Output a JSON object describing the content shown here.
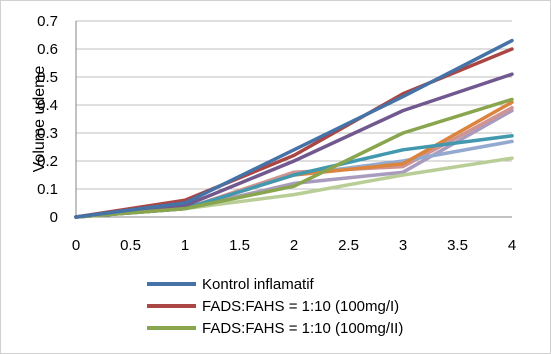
{
  "chart_data": {
    "type": "line",
    "title": "",
    "xlabel": "",
    "ylabel": "Volume udeme",
    "x": [
      0,
      1,
      2,
      3,
      4
    ],
    "xlim": [
      0,
      4
    ],
    "ylim": [
      0,
      0.7
    ],
    "xticks": [
      "0",
      "0.5",
      "1",
      "1.5",
      "2",
      "2.5",
      "3",
      "3.5",
      "4"
    ],
    "yticks": [
      "0",
      "0.1",
      "0.2",
      "0.3",
      "0.4",
      "0.5",
      "0.6",
      "0.7"
    ],
    "grid": "horizontal",
    "legend_position": "bottom",
    "series": [
      {
        "name": "Kontrol inflamatif",
        "color": "#4572A7",
        "values": [
          0,
          0.05,
          0.24,
          0.43,
          0.63
        ]
      },
      {
        "name": "FADS:FAHS = 1:10 (100mg/I)",
        "color": "#AA4643",
        "values": [
          0,
          0.06,
          0.22,
          0.44,
          0.6
        ]
      },
      {
        "name": "FADS:FAHS = 1:10 (100mg/II)",
        "color": "#89A54E",
        "values": [
          0,
          0.03,
          0.11,
          0.3,
          0.42
        ]
      },
      {
        "color": "#71588F",
        "values": [
          0,
          0.04,
          0.2,
          0.38,
          0.51
        ]
      },
      {
        "color": "#4198AF",
        "values": [
          0,
          0.03,
          0.15,
          0.24,
          0.29
        ]
      },
      {
        "color": "#DB843D",
        "values": [
          0,
          0.03,
          0.15,
          0.19,
          0.41
        ]
      },
      {
        "color": "#93A9CF",
        "values": [
          0,
          0.03,
          0.15,
          0.2,
          0.27
        ]
      },
      {
        "color": "#D19392",
        "values": [
          0,
          0.03,
          0.16,
          0.18,
          0.39
        ]
      },
      {
        "color": "#B9CD96",
        "values": [
          0,
          0.03,
          0.08,
          0.15,
          0.21
        ]
      },
      {
        "color": "#A99BBD",
        "values": [
          0,
          0.03,
          0.12,
          0.16,
          0.38
        ]
      }
    ]
  }
}
